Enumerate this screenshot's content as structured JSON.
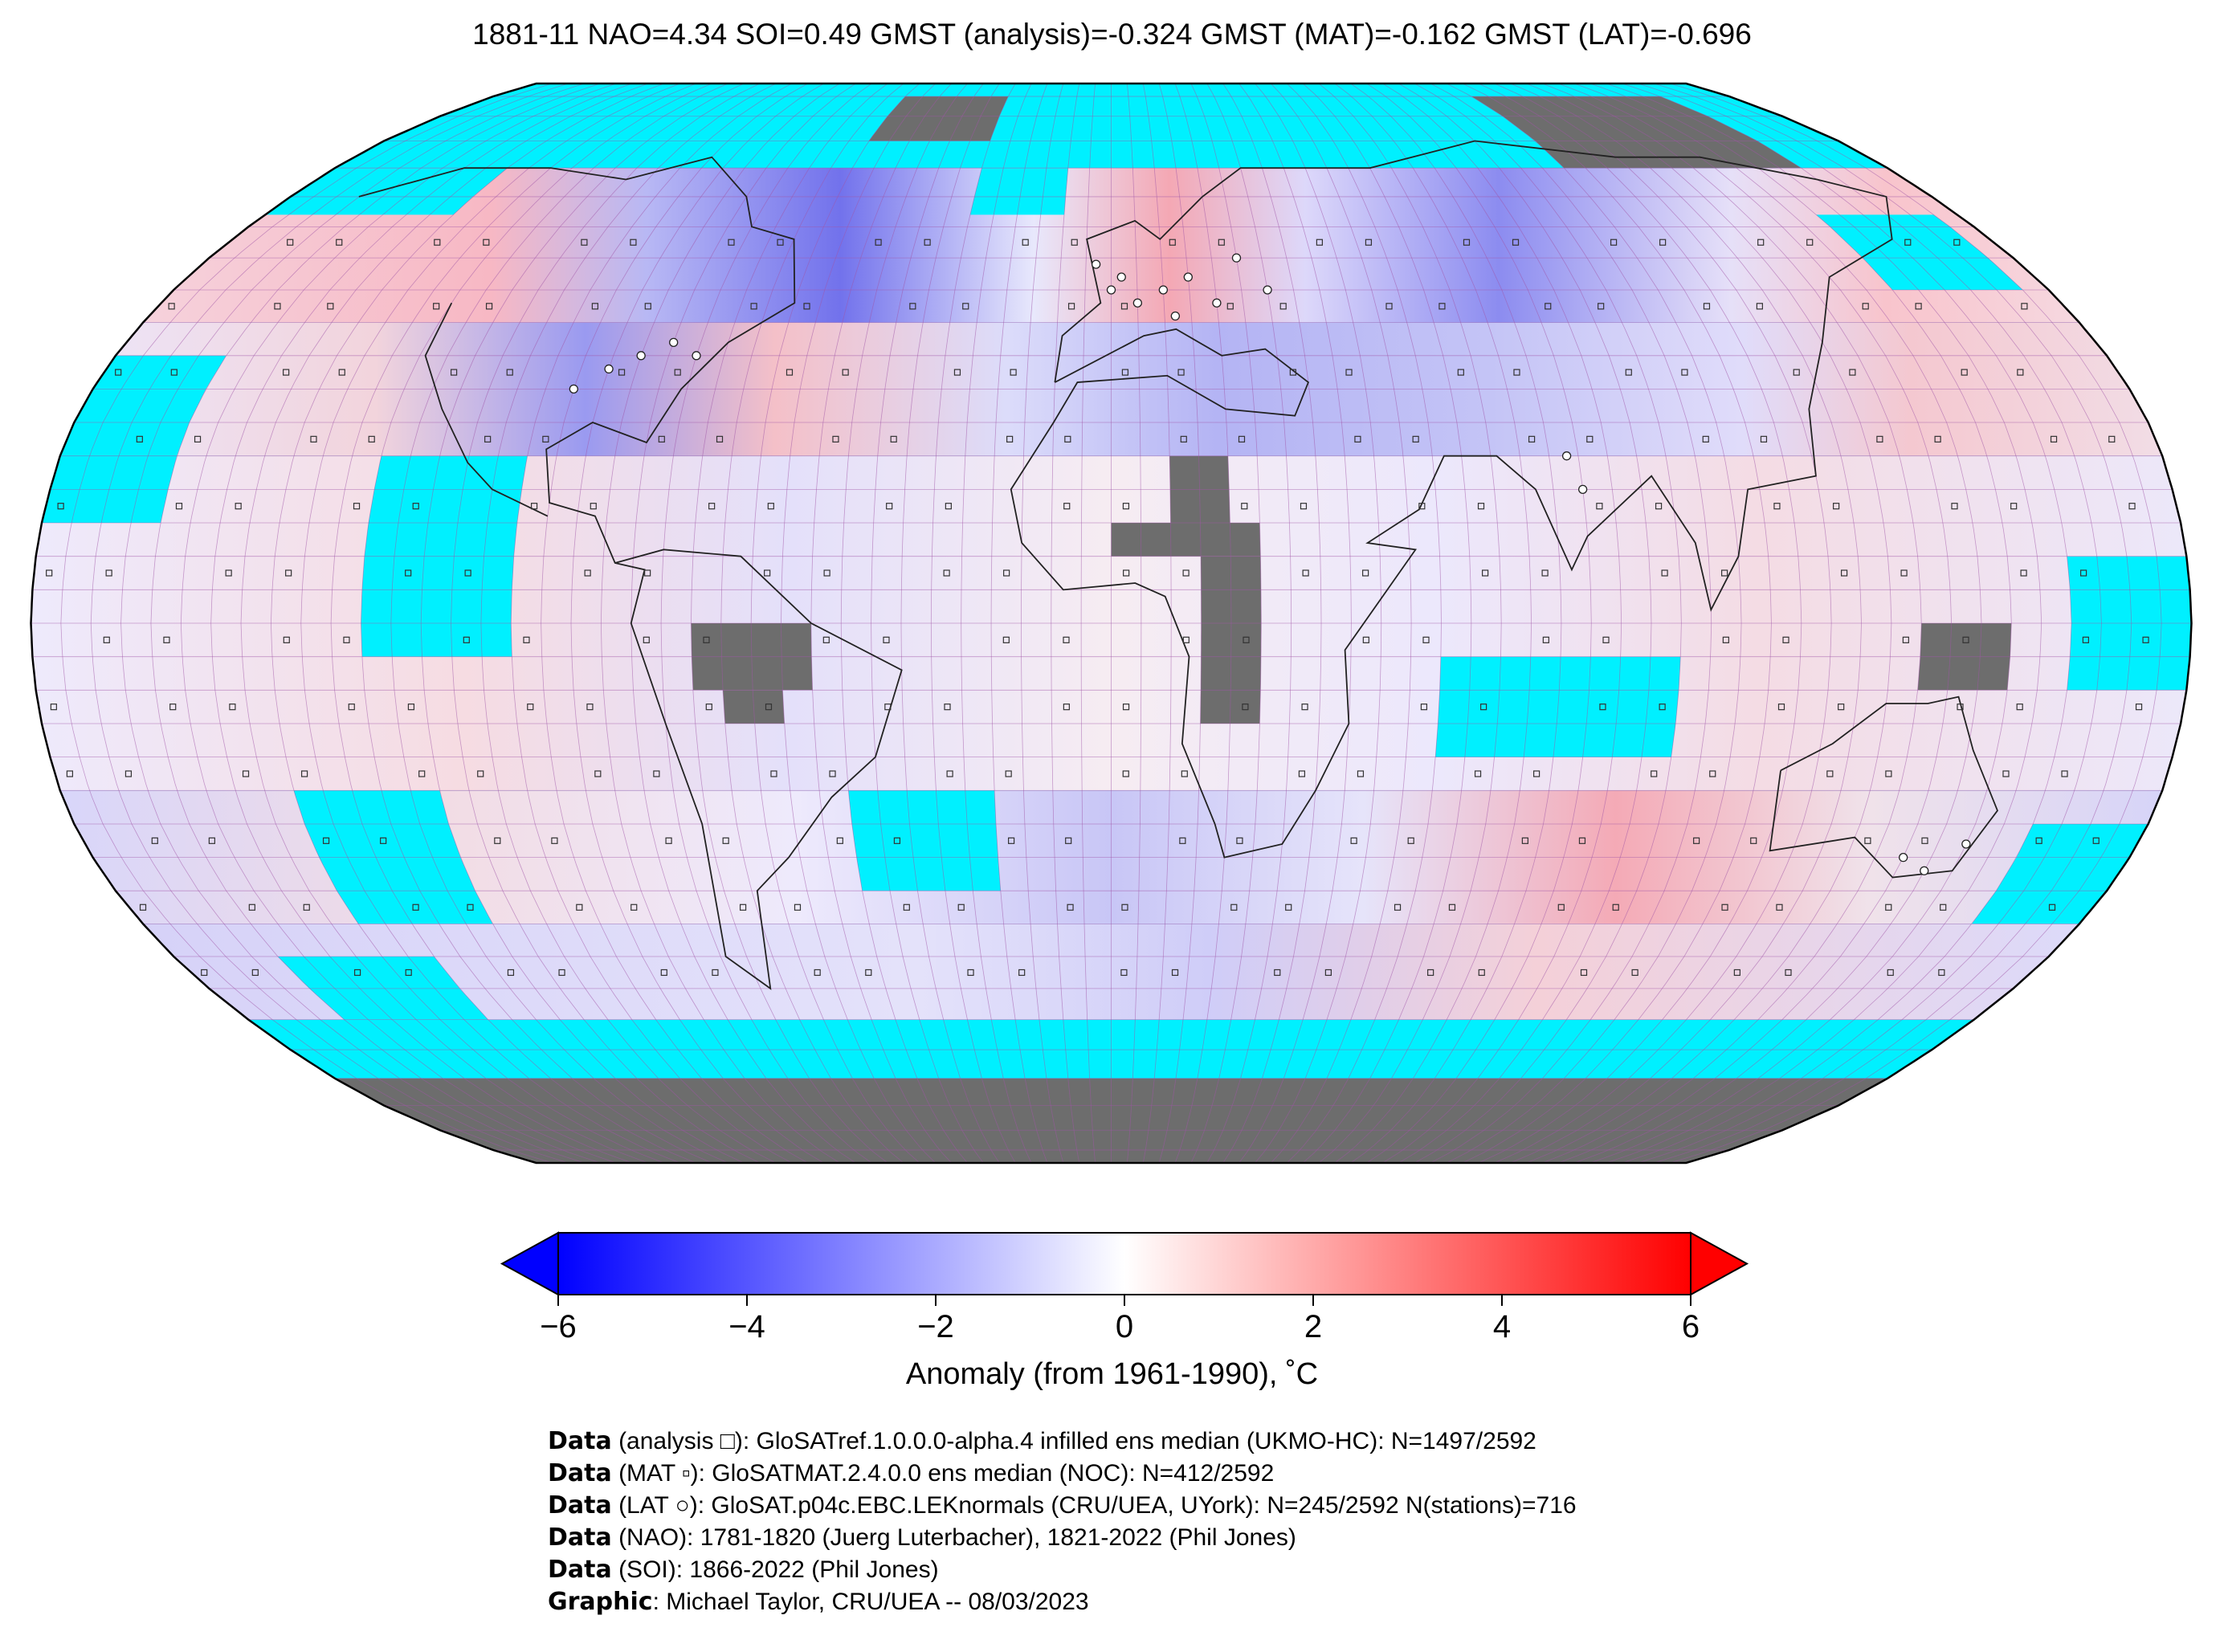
{
  "title": "1881-11 NAO=4.34 SOI=0.49 GMST (analysis)=-0.324 GMST (MAT)=-0.162 GMST (LAT)=-0.696",
  "colors": {
    "land_no_data": "#6d6d6d",
    "no_coverage": "#00f0ff",
    "gridline": "#a055a8",
    "scale_min": "#0000ff",
    "scale_mid": "#ffffff",
    "scale_max": "#ff0000"
  },
  "map": {
    "projection": "Robinson",
    "grid_resolution_deg": 5,
    "markers": [
      {
        "name": "analysis",
        "icon": "square-outline-icon"
      },
      {
        "name": "MAT",
        "icon": "small-square-icon"
      },
      {
        "name": "LAT",
        "icon": "circle-outline-icon"
      }
    ]
  },
  "colorbar": {
    "min": -6,
    "max": 6,
    "ticks": [
      "−6",
      "−4",
      "−2",
      "0",
      "2",
      "4",
      "6"
    ],
    "tick_values": [
      -6,
      -4,
      -2,
      0,
      2,
      4,
      6
    ],
    "label": "Anomaly (from 1961-1990), ˚C",
    "extend": "both"
  },
  "credits": [
    {
      "key": "Data",
      "text": " (analysis □): GloSATref.1.0.0.0-alpha.4 infilled ens median (UKMO-HC): N=1497/2592"
    },
    {
      "key": "Data",
      "text": " (MAT ▫): GloSATMAT.2.4.0.0 ens median (NOC): N=412/2592"
    },
    {
      "key": "Data",
      "text": " (LAT ○): GloSAT.p04c.EBC.LEKnormals (CRU/UEA, UYork): N=245/2592 N(stations)=716"
    },
    {
      "key": "Data",
      "text": " (NAO): 1781-1820 (Juerg Luterbacher), 1821-2022 (Phil Jones)"
    },
    {
      "key": "Data",
      "text": " (SOI): 1866-2022 (Phil Jones)"
    },
    {
      "key": "Graphic",
      "text": ": Michael Taylor, CRU/UEA -- 08/03/2023"
    }
  ]
}
